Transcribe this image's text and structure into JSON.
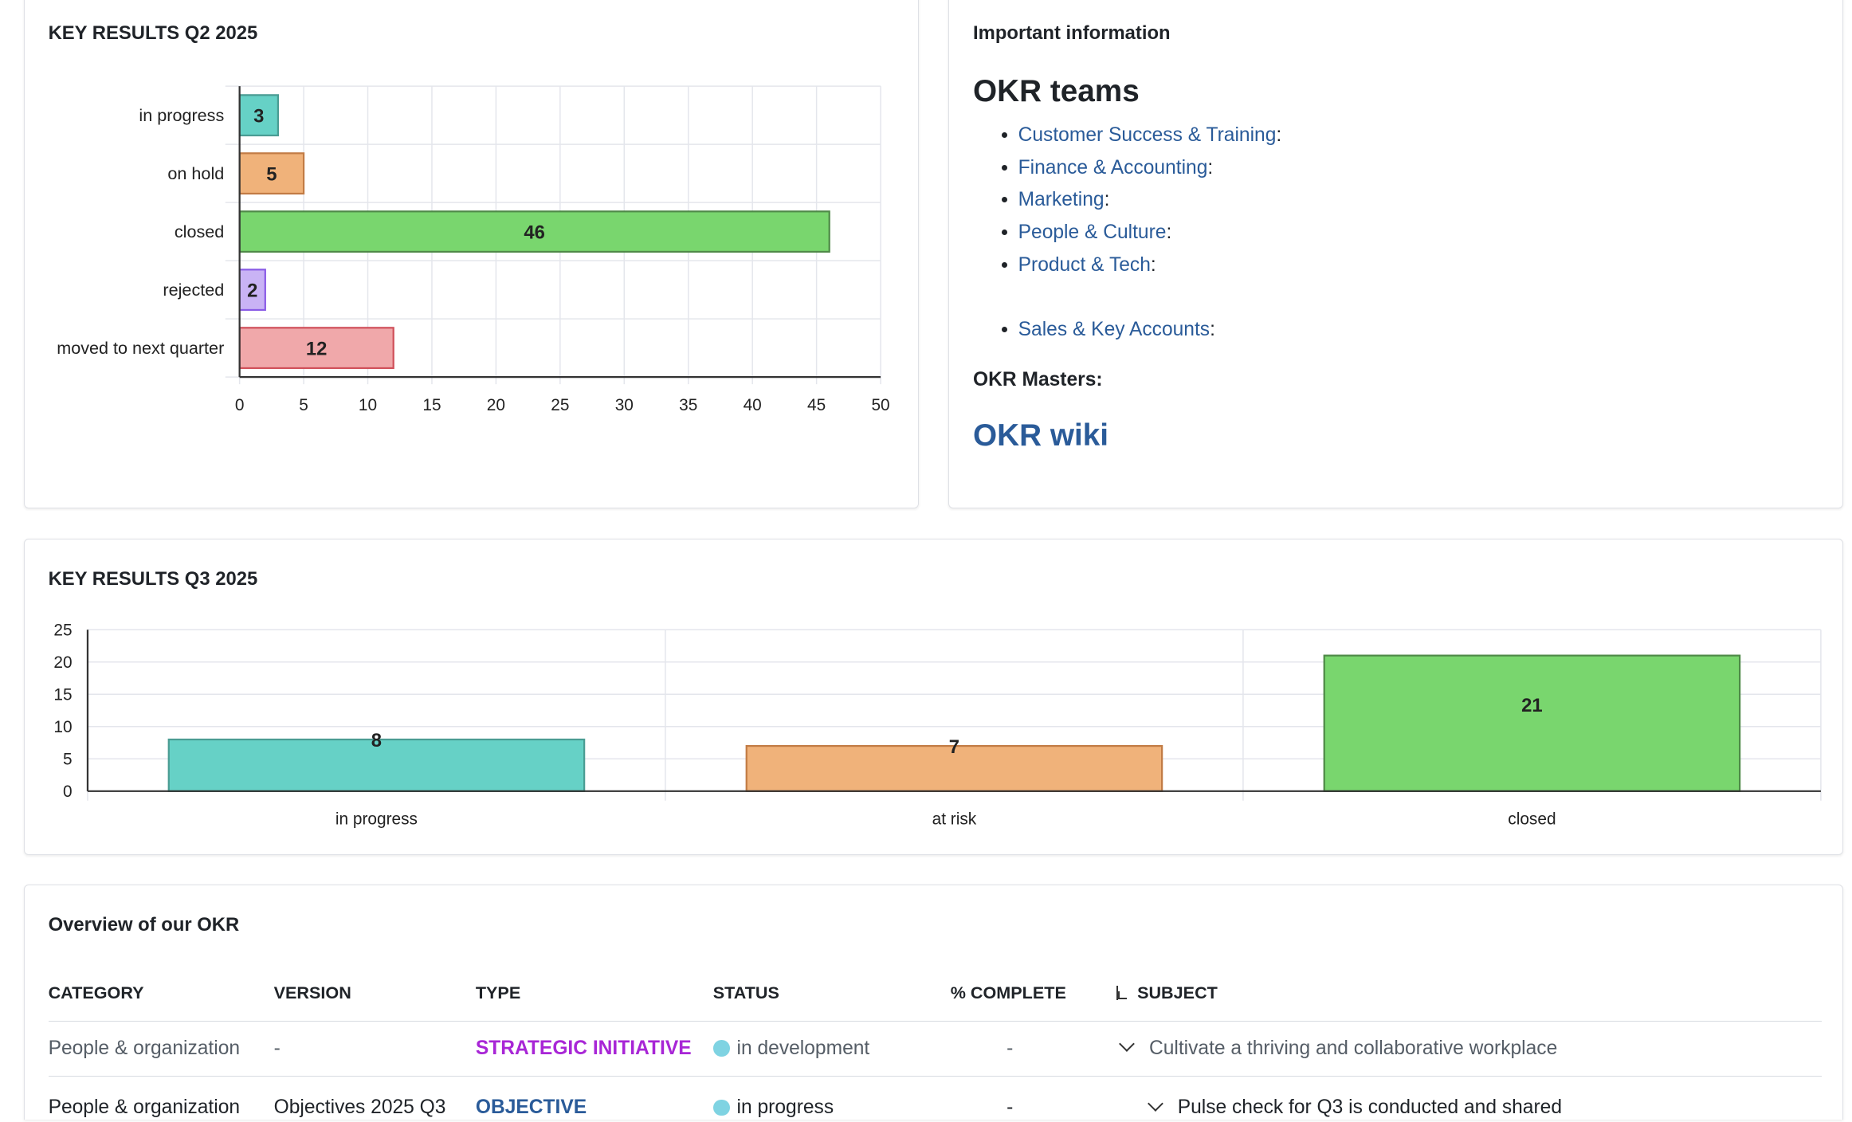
{
  "q2_card": {
    "title": "KEY RESULTS Q2 2025"
  },
  "q3_card": {
    "title": "KEY RESULTS Q3 2025"
  },
  "info": {
    "title": "Important information",
    "teams_heading": "OKR teams",
    "teams": [
      "Customer Success & Training",
      "Finance & Accounting",
      "Marketing",
      "People & Culture",
      "Product & Tech",
      "",
      "Sales & Key Accounts"
    ],
    "colon": ":",
    "masters_label": "OKR Masters:",
    "wiki_link": "OKR wiki",
    "link_color": "#2a5b99"
  },
  "chart_data": [
    {
      "type": "bar",
      "orientation": "horizontal",
      "title": "KEY RESULTS Q2 2025",
      "categories": [
        "in progress",
        "on hold",
        "closed",
        "rejected",
        "moved to next quarter"
      ],
      "values": [
        3,
        5,
        46,
        2,
        12
      ],
      "colors": [
        "#66d1c6",
        "#f0b27a",
        "#79d66e",
        "#c9b3f5",
        "#f0a8aa"
      ],
      "borders": [
        "#4a9c93",
        "#c27c45",
        "#4f8a48",
        "#8a5ce6",
        "#d0505a"
      ],
      "xlim": [
        0,
        50
      ],
      "xticks": [
        0,
        5,
        10,
        15,
        20,
        25,
        30,
        35,
        40,
        45,
        50
      ],
      "grid": true,
      "legend": "none"
    },
    {
      "type": "bar",
      "orientation": "vertical",
      "title": "KEY RESULTS Q3 2025",
      "categories": [
        "in progress",
        "at risk",
        "closed"
      ],
      "values": [
        8,
        7,
        21
      ],
      "colors": [
        "#66d1c6",
        "#f0b27a",
        "#79d66e"
      ],
      "borders": [
        "#4a9c93",
        "#c27c45",
        "#4f8a48"
      ],
      "ylim": [
        0,
        25
      ],
      "yticks": [
        0,
        5,
        10,
        15,
        20,
        25
      ],
      "grid": true,
      "legend": "none"
    }
  ],
  "overview": {
    "title": "Overview of our OKR",
    "columns": [
      "CATEGORY",
      "VERSION",
      "TYPE",
      "STATUS",
      "% COMPLETE",
      "SUBJECT"
    ],
    "rows": [
      {
        "category": "People & organization",
        "version": "-",
        "type": "STRATEGIC INITIATIVE",
        "type_color": "#a826d6",
        "status": "in development",
        "complete": "-",
        "subject": "Cultivate a thriving and collaborative workplace"
      },
      {
        "category": "People & organization",
        "version": "Objectives 2025 Q3",
        "type": "OBJECTIVE",
        "type_color": "#2a5b99",
        "status": "in progress",
        "complete": "-",
        "subject": "Pulse check for Q3 is conducted and shared"
      }
    ]
  }
}
